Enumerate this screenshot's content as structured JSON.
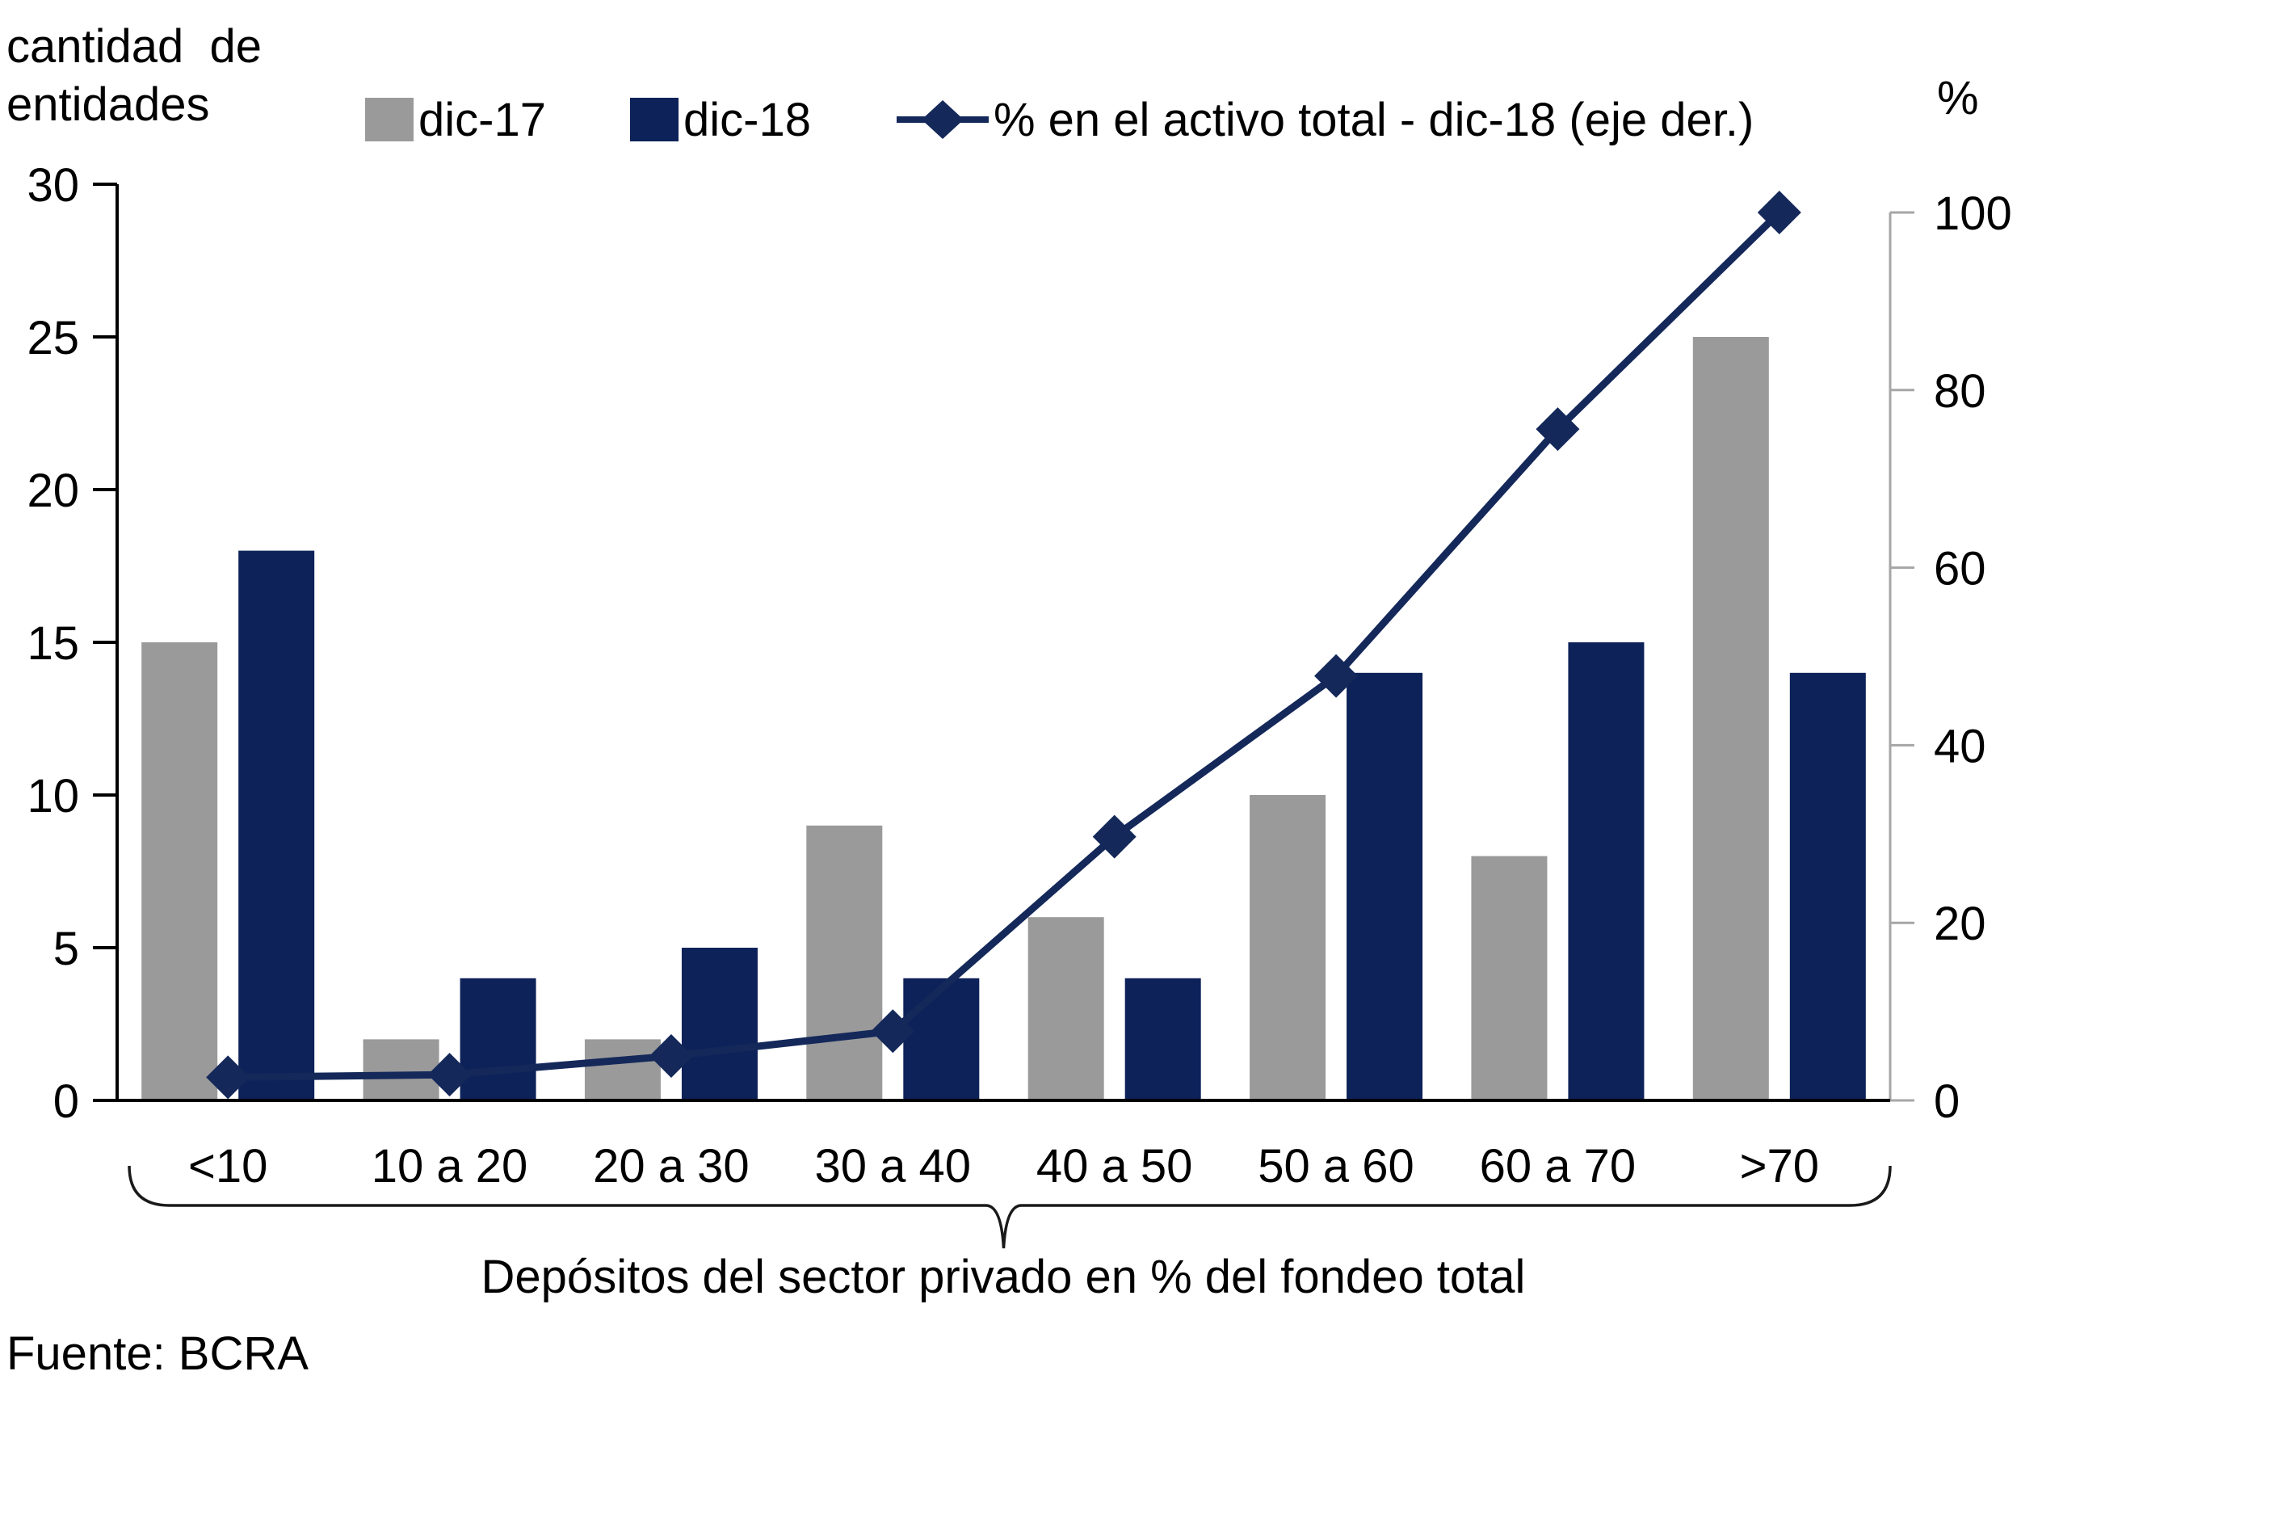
{
  "labels": {
    "left_axis_line1": "cantidad  de",
    "left_axis_line2": "entidades",
    "right_axis_symbol": "%"
  },
  "source": "Fuente: BCRA",
  "colors": {
    "bar_dic17": "#9a9a9a",
    "bar_dic18": "#0d2259",
    "line_series": "#14285a",
    "right_axis": "#a6a6a6",
    "axis_black": "#000000"
  },
  "chart_data": {
    "type": "bar",
    "subtype": "grouped-bars-with-line-right-axis",
    "title": "",
    "categories": [
      "<10",
      "10 a 20",
      "20 a 30",
      "30 a 40",
      "40 a 50",
      "50 a 60",
      "60 a 70",
      ">70"
    ],
    "series": [
      {
        "name": "dic-17",
        "type": "bar",
        "axis": "left",
        "color": "#9a9a9a",
        "values": [
          15,
          2,
          2,
          9,
          6,
          10,
          8,
          25
        ]
      },
      {
        "name": "dic-18",
        "type": "bar",
        "axis": "left",
        "color": "#0d2259",
        "values": [
          18,
          4,
          5,
          4,
          4,
          14,
          15,
          14
        ]
      },
      {
        "name": "% en el activo total - dic-18 (eje der.)",
        "type": "line",
        "axis": "right",
        "color": "#14285a",
        "marker": "diamond",
        "values": [
          2.6,
          2.9,
          5,
          7.8,
          29.7,
          47.8,
          75.6,
          100
        ]
      }
    ],
    "left_axis": {
      "title": "cantidad de entidades",
      "ticks": [
        0,
        5,
        10,
        15,
        20,
        25,
        30
      ],
      "range": [
        0,
        30
      ]
    },
    "right_axis": {
      "title": "%",
      "ticks": [
        0,
        20,
        40,
        60,
        80,
        100
      ],
      "range": [
        0,
        100
      ]
    },
    "xlabel": "Depósitos del sector privado en % del fondeo total",
    "legend_position": "top",
    "grid": false
  }
}
